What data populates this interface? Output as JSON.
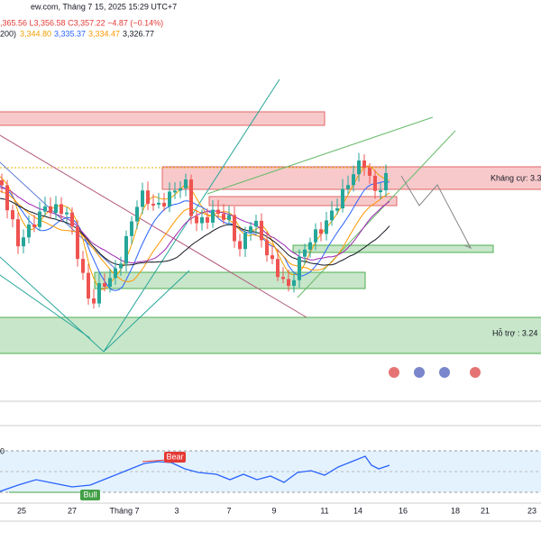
{
  "header": {
    "source": "ew.com, Tháng 7 15, 2025 15:29 UTC+7",
    "ohlc": ",365.56  L3,356.58  C3,357.22  −4.87 (−0.14%)",
    "ma_title": "200)",
    "ma_values": [
      "3,344.80",
      "3,335.37",
      "3,334.47",
      "3,326.77"
    ]
  },
  "zones": {
    "resistance": "Kháng cự: 3.3",
    "support": "Hỗ trợ : 3.24"
  },
  "rsi": {
    "label_prefix": "0",
    "bear": "Bear",
    "bull": "Bull"
  },
  "x_axis": [
    "25",
    "27",
    "Tháng 7",
    "3",
    "7",
    "9",
    "11",
    "14",
    "16",
    "18",
    "21",
    "23"
  ]
}
